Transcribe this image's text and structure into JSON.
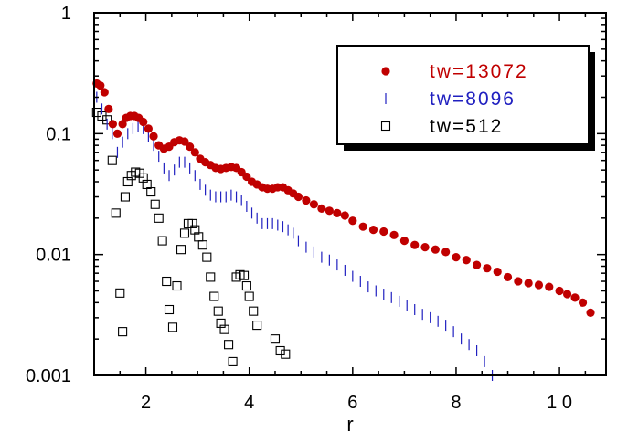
{
  "chart_data": {
    "type": "scatter",
    "title": "",
    "xlabel": "r",
    "ylabel": "",
    "xlim": [
      1,
      10.9
    ],
    "ylim": [
      0.001,
      1
    ],
    "yscale": "log",
    "grid": false,
    "legend_position": "top-right",
    "x_ticks": [
      2,
      4,
      6,
      8,
      10
    ],
    "x_tick_labels": [
      "2",
      "4",
      "6",
      "8",
      "1 0"
    ],
    "y_ticks": [
      0.001,
      0.01,
      0.1,
      1
    ],
    "y_tick_labels": [
      "0.001",
      "0.01",
      "0.1",
      "1"
    ],
    "series": [
      {
        "name": "tw=13072",
        "color": "#c00000",
        "marker": "filled-circle",
        "x": [
          1.05,
          1.12,
          1.2,
          1.28,
          1.36,
          1.45,
          1.55,
          1.62,
          1.7,
          1.78,
          1.86,
          1.95,
          2.05,
          2.15,
          2.25,
          2.35,
          2.45,
          2.55,
          2.65,
          2.75,
          2.85,
          2.95,
          3.05,
          3.15,
          3.25,
          3.35,
          3.45,
          3.55,
          3.65,
          3.75,
          3.85,
          3.95,
          4.05,
          4.15,
          4.25,
          4.35,
          4.45,
          4.55,
          4.65,
          4.75,
          4.85,
          4.95,
          5.1,
          5.25,
          5.4,
          5.55,
          5.7,
          5.85,
          6.0,
          6.2,
          6.4,
          6.6,
          6.8,
          7.0,
          7.2,
          7.4,
          7.6,
          7.8,
          8.0,
          8.2,
          8.4,
          8.6,
          8.8,
          9.0,
          9.2,
          9.4,
          9.6,
          9.8,
          10.0,
          10.15,
          10.3,
          10.45,
          10.6
        ],
        "y": [
          0.26,
          0.25,
          0.22,
          0.16,
          0.12,
          0.1,
          0.12,
          0.135,
          0.14,
          0.14,
          0.135,
          0.125,
          0.11,
          0.095,
          0.08,
          0.075,
          0.078,
          0.085,
          0.088,
          0.086,
          0.078,
          0.07,
          0.062,
          0.058,
          0.055,
          0.052,
          0.051,
          0.052,
          0.053,
          0.052,
          0.048,
          0.044,
          0.04,
          0.038,
          0.036,
          0.035,
          0.035,
          0.036,
          0.036,
          0.034,
          0.032,
          0.03,
          0.028,
          0.026,
          0.024,
          0.023,
          0.022,
          0.021,
          0.019,
          0.017,
          0.016,
          0.0155,
          0.0145,
          0.013,
          0.012,
          0.0115,
          0.011,
          0.0105,
          0.0095,
          0.009,
          0.0082,
          0.0077,
          0.0072,
          0.0065,
          0.006,
          0.0058,
          0.0056,
          0.0054,
          0.005,
          0.0047,
          0.0044,
          0.004,
          0.0033
        ]
      },
      {
        "name": "tw=8096",
        "color": "#2020c0",
        "marker": "vertical-dash",
        "x": [
          1.05,
          1.15,
          1.25,
          1.35,
          1.45,
          1.55,
          1.65,
          1.75,
          1.85,
          1.95,
          2.05,
          2.15,
          2.25,
          2.35,
          2.45,
          2.55,
          2.65,
          2.75,
          2.85,
          2.95,
          3.05,
          3.15,
          3.25,
          3.35,
          3.45,
          3.55,
          3.65,
          3.75,
          3.85,
          3.95,
          4.05,
          4.15,
          4.25,
          4.35,
          4.45,
          4.55,
          4.65,
          4.75,
          4.85,
          4.95,
          5.1,
          5.25,
          5.4,
          5.55,
          5.7,
          5.85,
          6.0,
          6.15,
          6.3,
          6.45,
          6.6,
          6.75,
          6.9,
          7.05,
          7.2,
          7.35,
          7.5,
          7.65,
          7.8,
          7.95,
          8.1,
          8.25,
          8.4,
          8.55,
          8.7
        ],
        "y": [
          0.2,
          0.16,
          0.12,
          0.1,
          0.07,
          0.085,
          0.1,
          0.11,
          0.115,
          0.11,
          0.095,
          0.08,
          0.065,
          0.052,
          0.045,
          0.05,
          0.058,
          0.058,
          0.052,
          0.045,
          0.038,
          0.034,
          0.031,
          0.03,
          0.03,
          0.03,
          0.031,
          0.03,
          0.028,
          0.025,
          0.022,
          0.02,
          0.018,
          0.018,
          0.018,
          0.0175,
          0.017,
          0.016,
          0.015,
          0.013,
          0.0115,
          0.0105,
          0.0095,
          0.009,
          0.0082,
          0.0074,
          0.0066,
          0.006,
          0.0054,
          0.005,
          0.0047,
          0.0044,
          0.0041,
          0.0038,
          0.0035,
          0.0032,
          0.003,
          0.0028,
          0.0026,
          0.0023,
          0.002,
          0.0018,
          0.0016,
          0.0013,
          0.001
        ]
      },
      {
        "name": "tw=512",
        "color": "#000000",
        "marker": "open-square",
        "x": [
          1.05,
          1.15,
          1.25,
          1.35,
          1.42,
          1.5,
          1.55,
          1.6,
          1.65,
          1.72,
          1.8,
          1.88,
          1.95,
          2.02,
          2.1,
          2.18,
          2.25,
          2.32,
          2.4,
          2.45,
          2.52,
          2.6,
          2.68,
          2.75,
          2.82,
          2.9,
          2.95,
          3.02,
          3.1,
          3.18,
          3.25,
          3.32,
          3.4,
          3.45,
          3.52,
          3.6,
          3.68,
          3.75,
          3.82,
          3.9,
          3.95,
          4.0,
          4.08,
          4.15,
          4.5,
          4.6,
          4.7
        ],
        "y": [
          0.15,
          0.14,
          0.13,
          0.06,
          0.022,
          0.0048,
          0.0023,
          0.03,
          0.04,
          0.045,
          0.048,
          0.047,
          0.043,
          0.038,
          0.033,
          0.026,
          0.02,
          0.013,
          0.006,
          0.0035,
          0.0025,
          0.0055,
          0.011,
          0.015,
          0.018,
          0.018,
          0.016,
          0.014,
          0.012,
          0.0095,
          0.0065,
          0.0045,
          0.0034,
          0.0027,
          0.0024,
          0.0018,
          0.0013,
          0.0065,
          0.0068,
          0.0067,
          0.0055,
          0.0045,
          0.0034,
          0.0026,
          0.002,
          0.0016,
          0.0015
        ]
      }
    ]
  }
}
